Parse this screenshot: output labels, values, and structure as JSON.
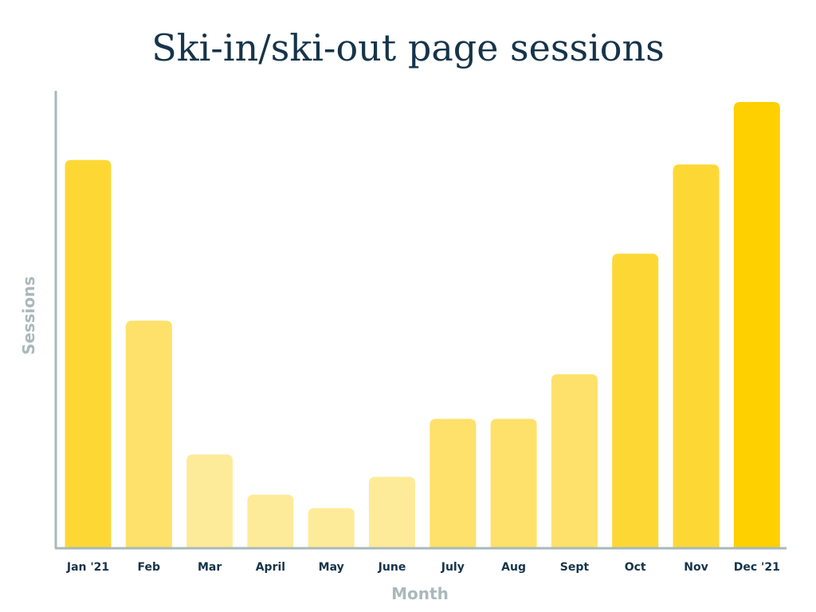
{
  "chart_data": {
    "type": "bar",
    "title": "Ski-in/ski-out page sessions",
    "xlabel": "Month",
    "ylabel": "Sessions",
    "categories": [
      "Jan '21",
      "Feb",
      "Mar",
      "April",
      "May",
      "June",
      "July",
      "Aug",
      "Sept",
      "Oct",
      "Nov",
      "Dec '21"
    ],
    "series": [
      {
        "values": [
          87,
          51,
          21,
          12,
          9,
          16,
          29,
          29,
          39,
          66,
          86,
          100
        ]
      }
    ],
    "ylim": [
      0,
      100
    ],
    "y_axis_ticks_shown": false,
    "grid": false,
    "bar_colors": [
      "#fdd835",
      "#fee16a",
      "#feeb99",
      "#feeb99",
      "#feeb99",
      "#feeb99",
      "#fee16a",
      "#fee16a",
      "#fee16a",
      "#fdd835",
      "#fdd835",
      "#fed000"
    ],
    "axis_color": "#a9b9bb"
  }
}
